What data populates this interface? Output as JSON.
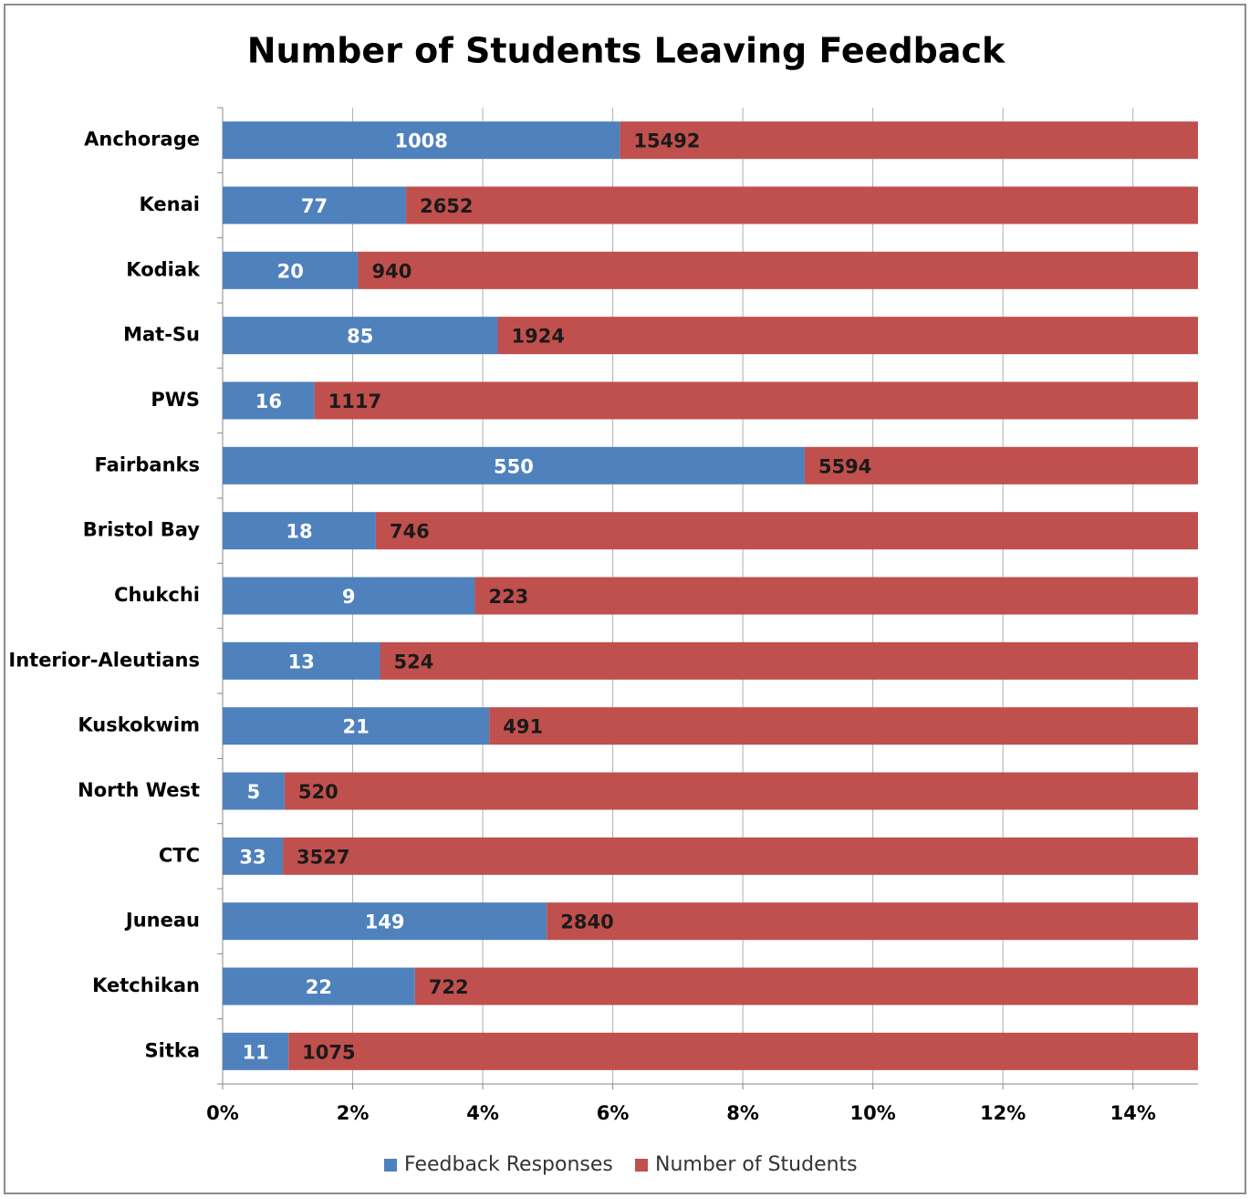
{
  "chart_data": {
    "type": "bar",
    "orientation": "horizontal",
    "stack": "percent",
    "title": "Number of Students Leaving Feedback",
    "categories": [
      "Anchorage",
      "Kenai",
      "Kodiak",
      "Mat-Su",
      "PWS",
      "Fairbanks",
      "Bristol Bay",
      "Chukchi",
      "Interior-Aleutians",
      "Kuskokwim",
      "North West",
      "CTC",
      "Juneau",
      "Ketchikan",
      "Sitka"
    ],
    "series": [
      {
        "name": "Feedback Responses",
        "color": "#4f81bd",
        "values": [
          1008,
          77,
          20,
          85,
          16,
          550,
          18,
          9,
          13,
          21,
          5,
          33,
          149,
          22,
          11
        ]
      },
      {
        "name": "Number of Students",
        "color": "#c0504d",
        "values": [
          15492,
          2652,
          940,
          1924,
          1117,
          5594,
          746,
          223,
          524,
          491,
          520,
          3527,
          2840,
          722,
          1075
        ]
      }
    ],
    "xlim": [
      0,
      15
    ],
    "xticks": [
      {
        "value": 0,
        "label": "0%"
      },
      {
        "value": 2,
        "label": "2%"
      },
      {
        "value": 4,
        "label": "4%"
      },
      {
        "value": 6,
        "label": "6%"
      },
      {
        "value": 8,
        "label": "8%"
      },
      {
        "value": 10,
        "label": "10%"
      },
      {
        "value": 12,
        "label": "12%"
      },
      {
        "value": 14,
        "label": "14%"
      }
    ],
    "grid": true,
    "legend": "bottom"
  }
}
